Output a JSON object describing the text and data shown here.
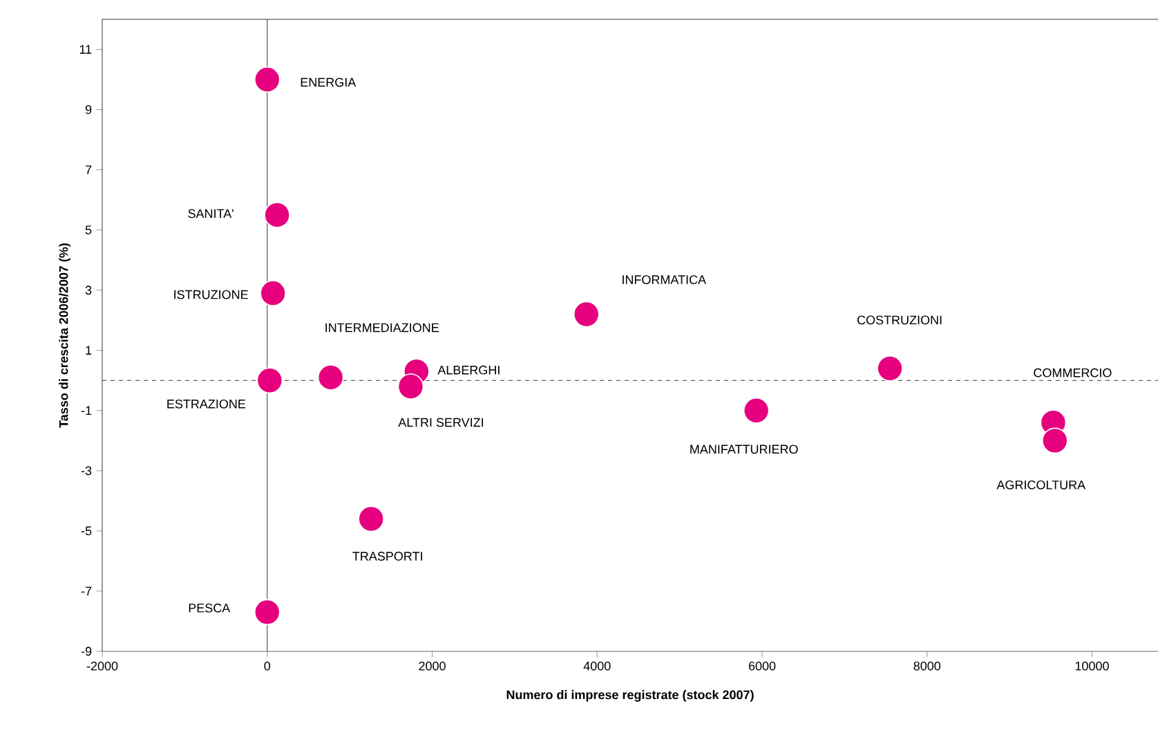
{
  "chart_data": {
    "type": "scatter",
    "xlabel": "Numero di imprese registrate (stock 2007)",
    "ylabel": "Tasso di crescita 2006/2007 (%)",
    "color": "#e6007e",
    "marker": "circle",
    "grid": false,
    "xlim": [
      -2000,
      10800
    ],
    "ylim": [
      -9,
      12
    ],
    "xticks": [
      -2000,
      0,
      2000,
      4000,
      6000,
      8000,
      10000
    ],
    "yticks": [
      -9,
      -7,
      -5,
      -3,
      -1,
      1,
      3,
      5,
      7,
      9,
      11
    ],
    "ref_lines": [
      {
        "axis": "y",
        "value": 0,
        "line_style": "dashed",
        "color": "#000000"
      },
      {
        "axis": "x",
        "value": 0,
        "line_style": "solid",
        "color": "#000000"
      }
    ],
    "series": [
      {
        "name": "ENERGIA",
        "x": [
          0
        ],
        "values": [
          10
        ]
      },
      {
        "name": "SANITA'",
        "x": [
          120
        ],
        "values": [
          5.5
        ]
      },
      {
        "name": "ISTRUZIONE",
        "x": [
          70
        ],
        "values": [
          2.9
        ]
      },
      {
        "name": "ESTRAZIONE",
        "x": [
          30
        ],
        "values": [
          0
        ]
      },
      {
        "name": "INTERMEDIAZIONE",
        "x": [
          770
        ],
        "values": [
          0.1
        ]
      },
      {
        "name": "ALBERGHI",
        "x": [
          1810
        ],
        "values": [
          0.3
        ]
      },
      {
        "name": "ALTRI SERVIZI",
        "x": [
          1740
        ],
        "values": [
          -0.2
        ]
      },
      {
        "name": "INFORMATICA",
        "x": [
          3870
        ],
        "values": [
          2.2
        ]
      },
      {
        "name": "COSTRUZIONI",
        "x": [
          7550
        ],
        "values": [
          0.4
        ]
      },
      {
        "name": "MANIFATTURIERO",
        "x": [
          5930
        ],
        "values": [
          -1.0
        ]
      },
      {
        "name": "COMMERCIO",
        "x": [
          9530
        ],
        "values": [
          -1.4
        ]
      },
      {
        "name": "AGRICOLTURA",
        "x": [
          9550
        ],
        "values": [
          -2.0
        ]
      },
      {
        "name": "TRASPORTI",
        "x": [
          1260
        ],
        "values": [
          -4.6
        ]
      },
      {
        "name": "PESCA",
        "x": [
          0
        ],
        "values": [
          -7.7
        ]
      }
    ]
  }
}
